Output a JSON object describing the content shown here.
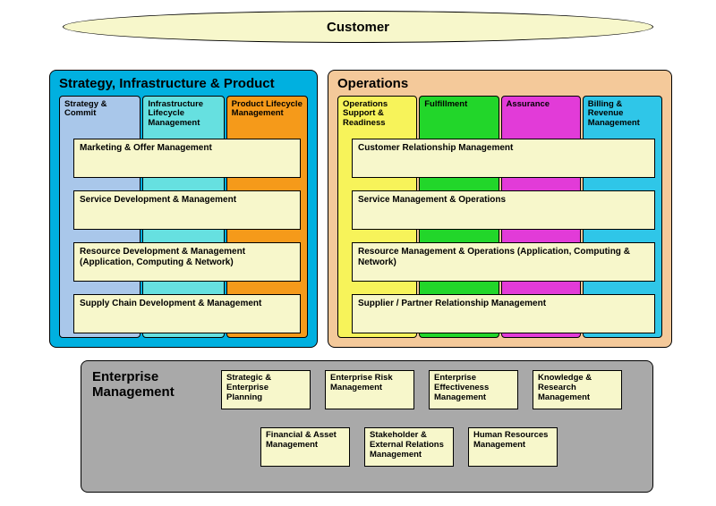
{
  "customer": {
    "label": "Customer"
  },
  "sip": {
    "title": "Strategy, Infrastructure & Product",
    "bg": "#00b0e0",
    "columns": [
      {
        "label": "Strategy & Commit",
        "bg": "#a9c7ea"
      },
      {
        "label": "Infrastructure Lifecycle Management",
        "bg": "#66e0e0"
      },
      {
        "label": "Product Lifecycle Management",
        "bg": "#f59a1a"
      }
    ],
    "rows": [
      "Marketing & Offer Management",
      "Service Development & Management",
      "Resource Development & Management (Application, Computing & Network)",
      "Supply Chain Development & Management"
    ]
  },
  "ops": {
    "title": "Operations",
    "bg": "#f4c99a",
    "columns": [
      {
        "label": "Operations Support & Readiness",
        "bg": "#f7f35a"
      },
      {
        "label": "Fulfillment",
        "bg": "#22d62a"
      },
      {
        "label": "Assurance",
        "bg": "#e23bd8"
      },
      {
        "label": "Billing & Revenue Management",
        "bg": "#2fc6e8"
      }
    ],
    "rows": [
      "Customer Relationship Management",
      "Service Management & Operations",
      "Resource Management & Operations (Application, Computing & Network)",
      "Supplier / Partner Relationship Management"
    ]
  },
  "ent": {
    "title1": "Enterprise",
    "title2": "Management",
    "bg": "#a9a9a9",
    "row1": [
      "Strategic & Enterprise Planning",
      "Enterprise Risk Management",
      "Enterprise Effectiveness Management",
      "Knowledge & Research Management"
    ],
    "row2": [
      "Financial & Asset Management",
      "Stakeholder & External Relations Management",
      "Human Resources Management"
    ]
  },
  "hrow_bg": "#f7f7cb",
  "entbox_bg": "#f7f7cb"
}
